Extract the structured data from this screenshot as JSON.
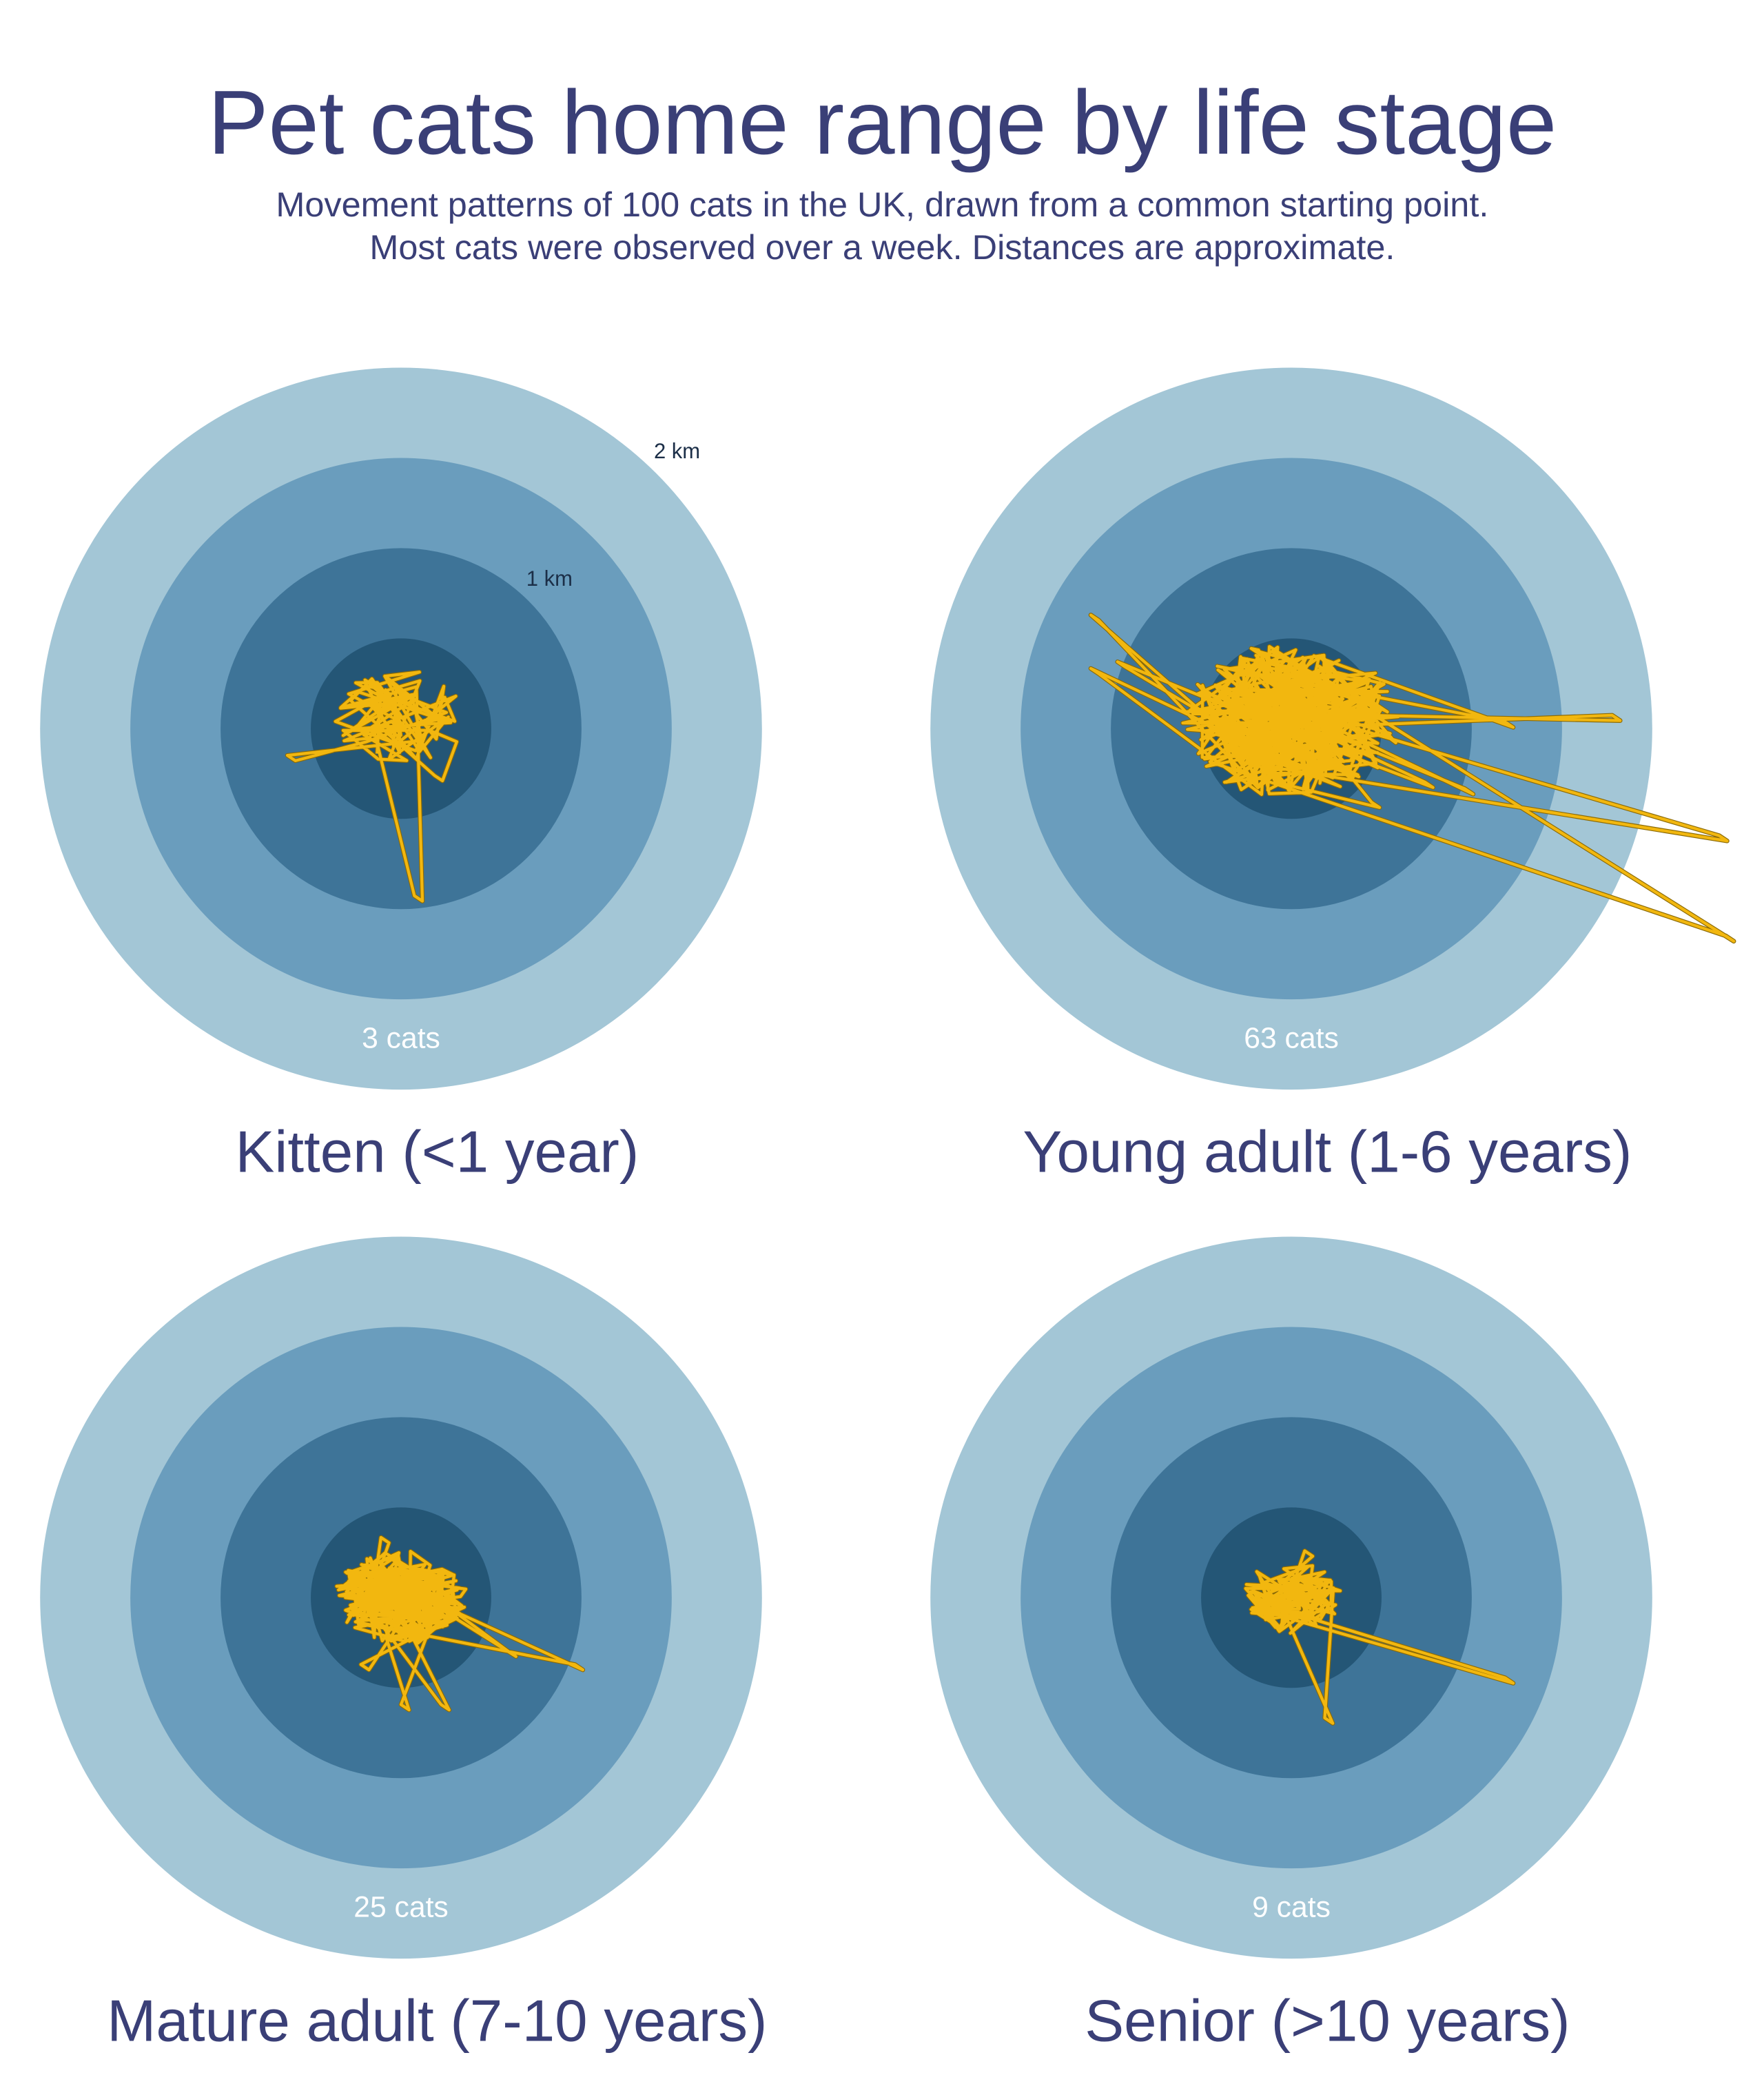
{
  "title": "Pet cats home range by life stage",
  "subtitle": [
    "Movement patterns of 100 cats in the UK, drawn from a common starting point.",
    "Most cats were observed over a week. Distances are approximate."
  ],
  "chart_data": [
    {
      "type": "radial",
      "title": "Kitten (<1 year)",
      "annotation": "3 cats",
      "rlim": [
        0,
        2
      ],
      "rticks": [
        {
          "value": 0.5,
          "label": null
        },
        {
          "value": 1,
          "label": "1 km"
        },
        {
          "value": 1.5,
          "label": null
        },
        {
          "value": 2,
          "label": "2 km"
        }
      ],
      "colors": [
        "#245676",
        "#3e7498",
        "#6a9dbd",
        "#a3c6d6"
      ],
      "track_color": "#f2b70f"
    },
    {
      "type": "radial",
      "title": "Young adult (1-6 years)",
      "annotation": "63 cats",
      "rlim": [
        0,
        2
      ],
      "rticks": [
        {
          "value": 0.5,
          "label": null
        },
        {
          "value": 1,
          "label": null
        },
        {
          "value": 1.5,
          "label": null
        },
        {
          "value": 2,
          "label": null
        }
      ],
      "colors": [
        "#245676",
        "#3e7498",
        "#6a9dbd",
        "#a3c6d6"
      ],
      "track_color": "#f2b70f"
    },
    {
      "type": "radial",
      "title": "Mature adult (7-10 years)",
      "annotation": "25 cats",
      "rlim": [
        0,
        2
      ],
      "rticks": [
        {
          "value": 0.5,
          "label": null
        },
        {
          "value": 1,
          "label": null
        },
        {
          "value": 1.5,
          "label": null
        },
        {
          "value": 2,
          "label": null
        }
      ],
      "colors": [
        "#245676",
        "#3e7498",
        "#6a9dbd",
        "#a3c6d6"
      ],
      "track_color": "#f2b70f"
    },
    {
      "type": "radial",
      "title": "Senior (>10 years)",
      "annotation": "9 cats",
      "rlim": [
        0,
        2
      ],
      "rticks": [
        {
          "value": 0.5,
          "label": null
        },
        {
          "value": 1,
          "label": null
        },
        {
          "value": 1.5,
          "label": null
        },
        {
          "value": 2,
          "label": null
        }
      ],
      "colors": [
        "#245676",
        "#3e7498",
        "#6a9dbd",
        "#a3c6d6"
      ],
      "track_color": "#f2b70f"
    }
  ]
}
